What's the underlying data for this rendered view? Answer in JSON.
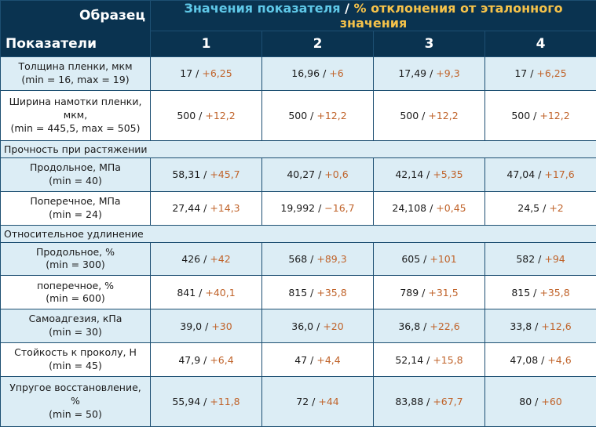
{
  "header": {
    "obrazets": "Образец",
    "pokazateli": "Показатели",
    "group_a": "Значения показателя",
    "group_sep": " / ",
    "group_b": "% отклонения от эталонного значения",
    "samples": [
      "1",
      "2",
      "3",
      "4"
    ]
  },
  "sep": " / ",
  "rows": [
    {
      "l1": "Толщина пленки, мкм",
      "l2": "(min = 16, max = 19)",
      "cells": [
        {
          "v": "17",
          "d": "+6,25"
        },
        {
          "v": "16,96",
          "d": "+6"
        },
        {
          "v": "17,49",
          "d": "+9,3"
        },
        {
          "v": "17",
          "d": "+6,25"
        }
      ]
    },
    {
      "l1": "Ширина намотки пленки, мкм,",
      "l2": "(min = 445,5, max = 505)",
      "cells": [
        {
          "v": "500",
          "d": "+12,2"
        },
        {
          "v": "500",
          "d": "+12,2"
        },
        {
          "v": "500",
          "d": "+12,2"
        },
        {
          "v": "500",
          "d": "+12,2"
        }
      ]
    },
    {
      "section": "Прочность при растяжении"
    },
    {
      "l1": "Продольное, МПа",
      "l2": "(min = 40)",
      "cells": [
        {
          "v": "58,31",
          "d": "+45,7"
        },
        {
          "v": "40,27",
          "d": "+0,6"
        },
        {
          "v": "42,14",
          "d": "+5,35"
        },
        {
          "v": "47,04",
          "d": "+17,6"
        }
      ]
    },
    {
      "l1": "Поперечное, МПа",
      "l2": "(min = 24)",
      "cells": [
        {
          "v": "27,44",
          "d": "+14,3"
        },
        {
          "v": "19,992",
          "d": "−16,7"
        },
        {
          "v": "24,108",
          "d": "+0,45"
        },
        {
          "v": "24,5",
          "d": "+2"
        }
      ]
    },
    {
      "section": "Относительное удлинение"
    },
    {
      "l1": "Продольное, %",
      "l2": "(min = 300)",
      "cells": [
        {
          "v": "426",
          "d": "+42"
        },
        {
          "v": "568",
          "d": "+89,3"
        },
        {
          "v": "605",
          "d": "+101"
        },
        {
          "v": "582",
          "d": "+94"
        }
      ]
    },
    {
      "l1": "поперечное, %",
      "l2": "(min = 600)",
      "cells": [
        {
          "v": "841",
          "d": "+40,1"
        },
        {
          "v": "815",
          "d": "+35,8"
        },
        {
          "v": "789",
          "d": "+31,5"
        },
        {
          "v": "815",
          "d": "+35,8"
        }
      ]
    },
    {
      "l1": "Самоадгезия, кПа",
      "l2": "(min = 30)",
      "cells": [
        {
          "v": "39,0",
          "d": "+30"
        },
        {
          "v": "36,0",
          "d": "+20"
        },
        {
          "v": "36,8",
          "d": "+22,6"
        },
        {
          "v": "33,8",
          "d": "+12,6"
        }
      ]
    },
    {
      "l1": "Стойкость к проколу, Н",
      "l2": "(min = 45)",
      "cells": [
        {
          "v": "47,9",
          "d": "+6,4"
        },
        {
          "v": "47",
          "d": "+4,4"
        },
        {
          "v": "52,14",
          "d": "+15,8"
        },
        {
          "v": "47,08",
          "d": "+4,6"
        }
      ]
    },
    {
      "l1": "Упругое восстановление, %",
      "l2": "(min = 50)",
      "cells": [
        {
          "v": "55,94",
          "d": "+11,8"
        },
        {
          "v": "72",
          "d": "+44"
        },
        {
          "v": "83,88",
          "d": "+67,7"
        },
        {
          "v": "80",
          "d": "+60"
        }
      ]
    }
  ]
}
